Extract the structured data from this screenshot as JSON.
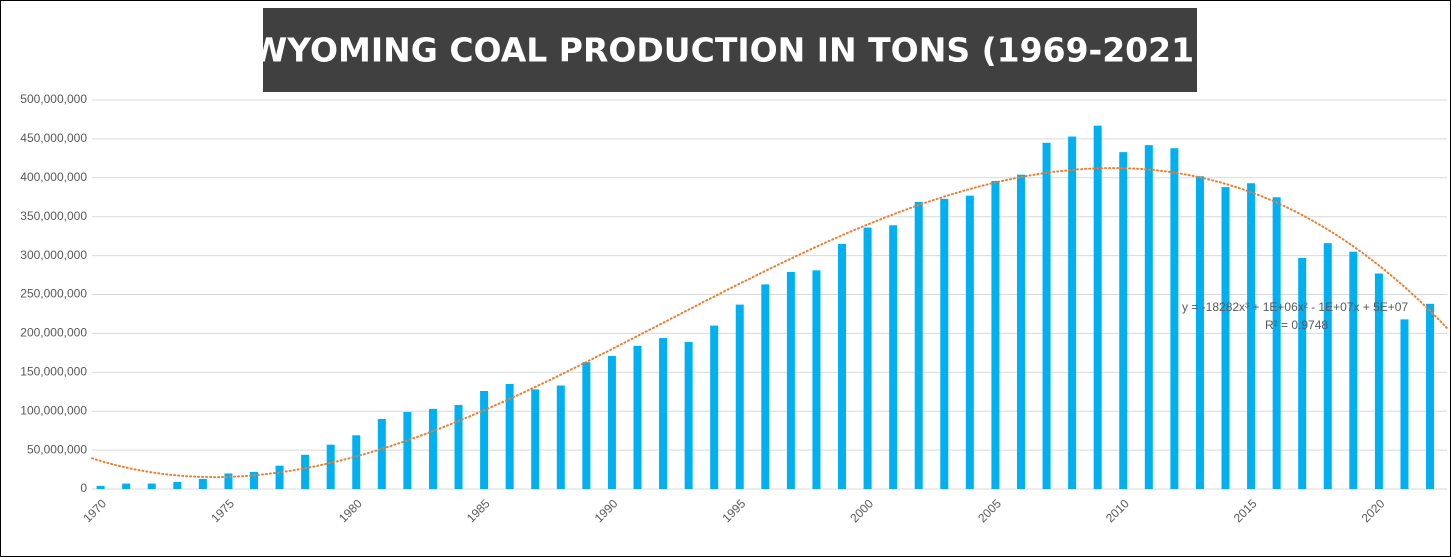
{
  "chart_data": {
    "type": "bar",
    "title": "WYOMING COAL PRODUCTION IN TONS (1969-2021)",
    "x": [
      1970,
      1971,
      1972,
      1973,
      1974,
      1975,
      1976,
      1977,
      1978,
      1979,
      1980,
      1981,
      1982,
      1983,
      1984,
      1985,
      1986,
      1987,
      1988,
      1989,
      1990,
      1991,
      1992,
      1993,
      1994,
      1995,
      1996,
      1997,
      1998,
      1999,
      2000,
      2001,
      2002,
      2003,
      2004,
      2005,
      2006,
      2007,
      2008,
      2009,
      2010,
      2011,
      2012,
      2013,
      2014,
      2015,
      2016,
      2017,
      2018,
      2019,
      2020,
      2021,
      2022
    ],
    "values": [
      4000000,
      7000000,
      7000000,
      9000000,
      13000000,
      20000000,
      22000000,
      30000000,
      44000000,
      57000000,
      69000000,
      90000000,
      99000000,
      103000000,
      108000000,
      126000000,
      135000000,
      128000000,
      133000000,
      163000000,
      171000000,
      184000000,
      194000000,
      189000000,
      210000000,
      237000000,
      263000000,
      279000000,
      281000000,
      315000000,
      336000000,
      339000000,
      369000000,
      373000000,
      377000000,
      396000000,
      404000000,
      445000000,
      453000000,
      467000000,
      433000000,
      442000000,
      438000000,
      402000000,
      388000000,
      393000000,
      375000000,
      297000000,
      316000000,
      305000000,
      277000000,
      218000000,
      238000000
    ],
    "color": "#00b0f0",
    "xlim": [
      1969.5,
      2022.5
    ],
    "xticks": [
      1970,
      1975,
      1980,
      1985,
      1990,
      1995,
      2000,
      2005,
      2010,
      2015,
      2020
    ],
    "ylim": [
      0,
      500000000
    ],
    "yticks": [
      0,
      {
        "value": 50000000,
        "label": "50,000,000"
      },
      {
        "value": 100000000,
        "label": "100,000,000"
      },
      {
        "value": 150000000,
        "label": "150,000,000"
      },
      {
        "value": 200000000,
        "label": "200,000,000"
      },
      {
        "value": 250000000,
        "label": "250,000,000"
      },
      {
        "value": 300000000,
        "label": "300,000,000"
      },
      {
        "value": 350000000,
        "label": "350,000,000"
      },
      {
        "value": 400000000,
        "label": "400,000,000"
      },
      {
        "value": 450000000,
        "label": "450,000,000"
      },
      {
        "value": 500000000,
        "label": "500,000,000"
      }
    ],
    "grid": true,
    "trendline": {
      "type": "polynomial",
      "order": 3,
      "color": "#ed7d31",
      "equation": "y = -18282x³ + 1E+06x² - 1E+07x + 5E+07",
      "r_squared": "R² = 0.9748"
    }
  }
}
